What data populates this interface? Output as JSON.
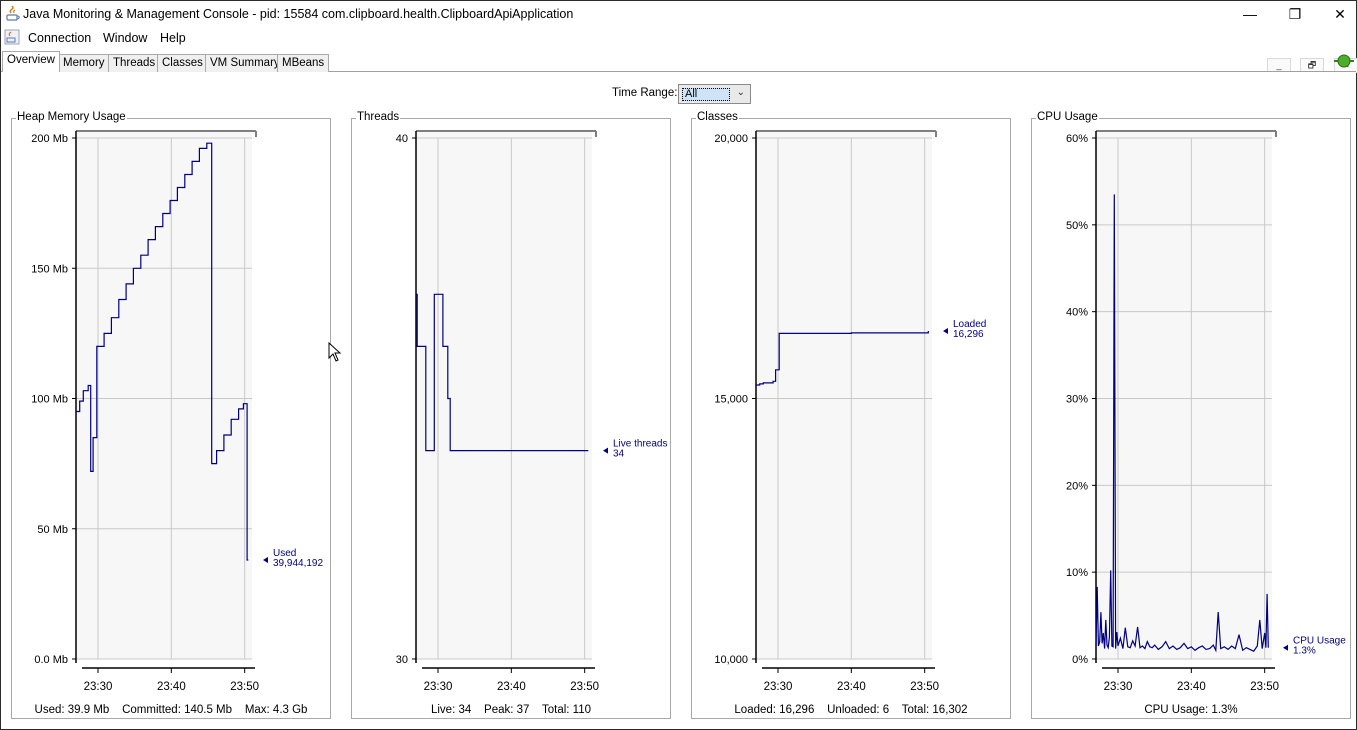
{
  "window": {
    "title": "Java Monitoring & Management Console - pid: 15584 com.clipboard.health.ClipboardApiApplication",
    "controls": {
      "minimize": "—",
      "restore": "❐",
      "close": "✕"
    }
  },
  "menubar": {
    "items": [
      "Connection",
      "Window",
      "Help"
    ],
    "mdi_controls": {
      "minimize": "_",
      "restore": "🗗",
      "close": "✕"
    }
  },
  "tabs": [
    "Overview",
    "Memory",
    "Threads",
    "Classes",
    "VM Summary",
    "MBeans"
  ],
  "active_tab": "Overview",
  "time_range": {
    "label": "Time Range:",
    "value": "All"
  },
  "colors": {
    "series": "#000080",
    "grid": "#c8c8c8",
    "plot_bg": "#f7f7f7",
    "axis": "#000000"
  },
  "icons": {
    "app": "java-icon",
    "connection": "connected-plug-icon",
    "dropdown": "chevron-down-icon"
  },
  "panels": [
    {
      "title": "Heap Memory Usage",
      "footer": "Used: 39.9 Mb    Committed: 140.5 Mb    Max: 4.3 Gb",
      "legend": {
        "name": "Used",
        "value": "39,944,192"
      }
    },
    {
      "title": "Threads",
      "footer": "Live: 34    Peak: 37    Total: 110",
      "legend": {
        "name": "Live threads",
        "value": "34"
      }
    },
    {
      "title": "Classes",
      "footer": "Loaded: 16,296    Unloaded: 6    Total: 16,302",
      "legend": {
        "name": "Loaded",
        "value": "16,296"
      }
    },
    {
      "title": "CPU Usage",
      "footer": "CPU Usage: 1.3%",
      "legend": {
        "name": "CPU Usage",
        "value": "1.3%"
      }
    }
  ],
  "chart_data": [
    {
      "type": "line",
      "title": "Heap Memory Usage",
      "x_ticks": [
        "23:30",
        "23:40",
        "23:50"
      ],
      "y_ticks": [
        "0.0 Mb",
        "50 Mb",
        "100 Mb",
        "150 Mb",
        "200 Mb"
      ],
      "ylim": [
        0,
        200
      ],
      "xlim": [
        "23:27",
        "23:51"
      ],
      "grid": true,
      "series": [
        {
          "name": "Used",
          "x": [
            "23:27:00",
            "23:27:30",
            "23:28:00",
            "23:28:40",
            "23:29:00",
            "23:29:20",
            "23:29:50",
            "23:30:50",
            "23:31:50",
            "23:32:50",
            "23:33:50",
            "23:34:50",
            "23:35:50",
            "23:36:50",
            "23:37:50",
            "23:38:50",
            "23:39:50",
            "23:40:50",
            "23:41:50",
            "23:42:50",
            "23:43:50",
            "23:44:50",
            "23:45:30",
            "23:46:10",
            "23:47:10",
            "23:48:10",
            "23:49:10",
            "23:49:50",
            "23:50:20",
            "23:50:30"
          ],
          "y": [
            95,
            99,
            103,
            105,
            72,
            85,
            120,
            125,
            131,
            138,
            144,
            150,
            155,
            161,
            166,
            171,
            176,
            181,
            186,
            191,
            196,
            198,
            75,
            80,
            86,
            92,
            96,
            98,
            38,
            38
          ]
        }
      ]
    },
    {
      "type": "line",
      "title": "Threads",
      "x_ticks": [
        "23:30",
        "23:40",
        "23:50"
      ],
      "y_ticks": [
        "30",
        "40"
      ],
      "ylim": [
        30,
        40
      ],
      "xlim": [
        "23:27",
        "23:51"
      ],
      "grid": true,
      "series": [
        {
          "name": "Live threads",
          "x": [
            "23:27:00",
            "23:27:10",
            "23:27:30",
            "23:28:20",
            "23:28:40",
            "23:29:30",
            "23:29:50",
            "23:30:40",
            "23:31:20",
            "23:31:40",
            "23:42:00",
            "23:50:30"
          ],
          "y": [
            37,
            36,
            36,
            34,
            34,
            37,
            37,
            36,
            35,
            34,
            34,
            34
          ]
        }
      ]
    },
    {
      "type": "line",
      "title": "Classes",
      "x_ticks": [
        "23:30",
        "23:40",
        "23:50"
      ],
      "y_ticks": [
        "10,000",
        "15,000",
        "20,000"
      ],
      "ylim": [
        10000,
        20000
      ],
      "xlim": [
        "23:27",
        "23:51"
      ],
      "grid": true,
      "series": [
        {
          "name": "Loaded",
          "x": [
            "23:27:00",
            "23:27:30",
            "23:28:00",
            "23:29:20",
            "23:29:40",
            "23:30:00",
            "23:30:10",
            "23:40:00",
            "23:50:30"
          ],
          "y": [
            15260,
            15280,
            15300,
            15330,
            15550,
            15550,
            16250,
            16260,
            16296
          ]
        }
      ]
    },
    {
      "type": "line",
      "title": "CPU Usage",
      "x_ticks": [
        "23:30",
        "23:40",
        "23:50"
      ],
      "y_ticks": [
        "0%",
        "10%",
        "20%",
        "30%",
        "40%",
        "50%",
        "60%"
      ],
      "ylim": [
        0,
        60
      ],
      "xlim": [
        "23:27",
        "23:51"
      ],
      "grid": true,
      "series": [
        {
          "name": "CPU Usage",
          "x": [
            "23:27:00",
            "23:27:10",
            "23:27:20",
            "23:27:30",
            "23:27:40",
            "23:27:50",
            "23:28:00",
            "23:28:10",
            "23:28:20",
            "23:28:30",
            "23:28:40",
            "23:28:50",
            "23:29:00",
            "23:29:10",
            "23:29:20",
            "23:29:30",
            "23:29:40",
            "23:29:50",
            "23:30:00",
            "23:30:20",
            "23:30:40",
            "23:31:00",
            "23:31:20",
            "23:31:40",
            "23:32:00",
            "23:32:20",
            "23:32:40",
            "23:33:00",
            "23:33:20",
            "23:33:40",
            "23:34:00",
            "23:34:20",
            "23:34:40",
            "23:35:00",
            "23:35:30",
            "23:36:00",
            "23:36:30",
            "23:37:00",
            "23:37:30",
            "23:38:00",
            "23:38:30",
            "23:39:00",
            "23:39:30",
            "23:40:00",
            "23:40:30",
            "23:41:00",
            "23:41:30",
            "23:42:00",
            "23:42:30",
            "23:43:00",
            "23:43:20",
            "23:43:40",
            "23:44:00",
            "23:44:30",
            "23:45:00",
            "23:45:30",
            "23:46:00",
            "23:46:30",
            "23:47:00",
            "23:47:30",
            "23:48:00",
            "23:48:30",
            "23:49:00",
            "23:49:20",
            "23:49:40",
            "23:50:00",
            "23:50:10",
            "23:50:20",
            "23:50:30"
          ],
          "y": [
            1.5,
            8.3,
            1.5,
            2.0,
            5.4,
            1.8,
            3.0,
            1.2,
            4.5,
            1.6,
            1.3,
            2.5,
            10.2,
            1.5,
            1.4,
            53.5,
            1.2,
            3.1,
            1.5,
            2.4,
            1.2,
            3.6,
            1.4,
            1.3,
            2.1,
            1.5,
            3.7,
            1.3,
            1.5,
            1.2,
            2.0,
            1.4,
            1.3,
            1.6,
            1.1,
            1.4,
            2.0,
            1.2,
            1.5,
            1.1,
            1.3,
            1.8,
            1.2,
            1.4,
            1.0,
            1.3,
            1.5,
            1.1,
            1.2,
            1.6,
            1.0,
            5.4,
            1.2,
            1.4,
            1.1,
            1.5,
            1.2,
            2.8,
            1.0,
            1.3,
            1.1,
            0.9,
            1.5,
            4.5,
            1.2,
            3.0,
            1.3,
            7.5,
            1.3
          ]
        }
      ]
    }
  ]
}
